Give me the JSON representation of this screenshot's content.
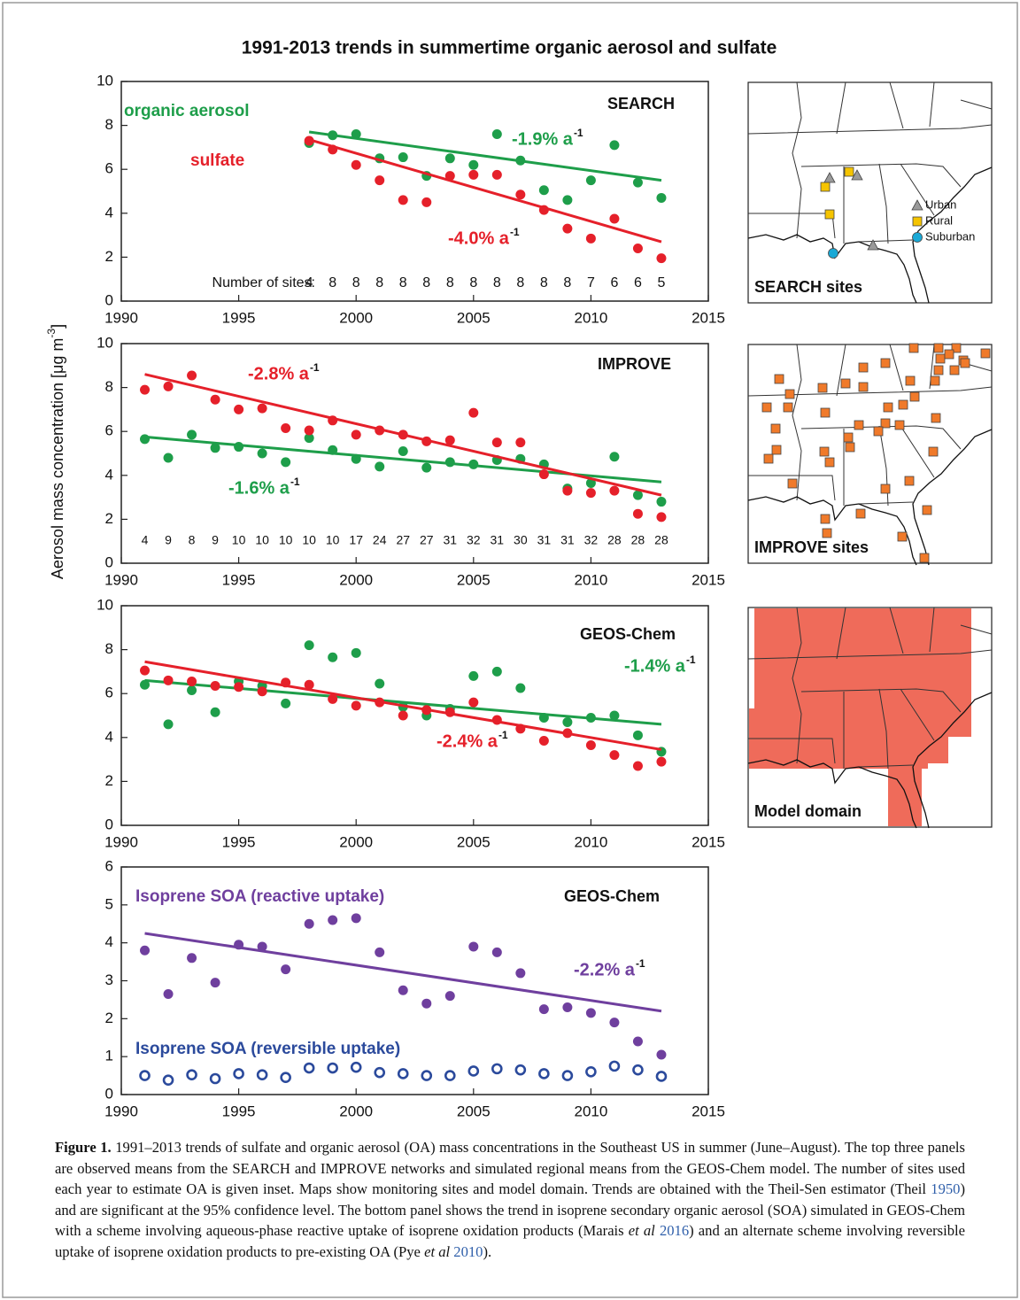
{
  "title": "1991-2013 trends in summertime organic aerosol and sulfate",
  "y_label": {
    "text": "Aerosol mass concentration [μg m",
    "sup": "-3",
    "end": "]"
  },
  "chart_data": [
    {
      "type": "scatter",
      "label": "SEARCH",
      "xlim": [
        1990,
        2015
      ],
      "xticks": [
        1990,
        1995,
        2000,
        2005,
        2010,
        2015
      ],
      "ylim": [
        0,
        10
      ],
      "yticks": [
        0,
        2,
        4,
        6,
        8,
        10
      ],
      "x": [
        1998,
        1999,
        2000,
        2001,
        2002,
        2003,
        2004,
        2005,
        2006,
        2007,
        2008,
        2009,
        2010,
        2011,
        2012,
        2013
      ],
      "series": [
        {
          "name": "organic aerosol",
          "color": "#1e9e4a",
          "marker": "filled",
          "values": [
            7.2,
            7.55,
            7.6,
            6.5,
            6.55,
            5.7,
            6.5,
            6.2,
            7.6,
            6.4,
            5.05,
            4.6,
            5.5,
            7.1,
            5.4,
            4.7
          ],
          "trend_x": [
            1998,
            2013
          ],
          "trend_values": [
            7.7,
            5.5
          ],
          "trend_label": "-1.9% a",
          "trend_label_sup": "-1"
        },
        {
          "name": "sulfate",
          "color": "#e5202a",
          "marker": "filled",
          "values": [
            7.3,
            6.9,
            6.2,
            5.5,
            4.6,
            4.5,
            5.7,
            5.75,
            5.75,
            4.85,
            4.15,
            3.3,
            2.85,
            3.75,
            2.4,
            1.95
          ],
          "trend_x": [
            1998,
            2013
          ],
          "trend_values": [
            7.35,
            2.7
          ],
          "trend_label": "-4.0% a",
          "trend_label_sup": "-1"
        }
      ],
      "sites_label": "Number of sites:",
      "sites": [
        4,
        8,
        8,
        8,
        8,
        8,
        8,
        8,
        8,
        8,
        8,
        8,
        7,
        6,
        6,
        5
      ]
    },
    {
      "type": "scatter",
      "label": "IMPROVE",
      "xlim": [
        1990,
        2015
      ],
      "xticks": [
        1990,
        1995,
        2000,
        2005,
        2010,
        2015
      ],
      "ylim": [
        0,
        10
      ],
      "yticks": [
        0,
        2,
        4,
        6,
        8,
        10
      ],
      "x": [
        1991,
        1992,
        1993,
        1994,
        1995,
        1996,
        1997,
        1998,
        1999,
        2000,
        2001,
        2002,
        2003,
        2004,
        2005,
        2006,
        2007,
        2008,
        2009,
        2010,
        2011,
        2012,
        2013
      ],
      "series": [
        {
          "color": "#1e9e4a",
          "marker": "filled",
          "values": [
            5.65,
            4.8,
            5.85,
            5.25,
            5.3,
            5.0,
            4.6,
            5.7,
            5.15,
            4.75,
            4.4,
            5.1,
            4.35,
            4.6,
            4.5,
            4.7,
            4.75,
            4.5,
            3.4,
            3.65,
            4.85,
            3.1,
            2.8
          ],
          "trend_x": [
            1991,
            2013
          ],
          "trend_values": [
            5.75,
            3.7
          ],
          "trend_label": "-1.6% a",
          "trend_label_sup": "-1"
        },
        {
          "color": "#e5202a",
          "marker": "filled",
          "values": [
            7.9,
            8.05,
            8.55,
            7.45,
            7.0,
            7.05,
            6.15,
            6.05,
            6.5,
            5.85,
            6.05,
            5.85,
            5.55,
            5.6,
            6.85,
            5.5,
            5.5,
            4.05,
            3.3,
            3.2,
            3.3,
            2.25,
            2.1
          ],
          "trend_x": [
            1991,
            2013
          ],
          "trend_values": [
            8.6,
            3.1
          ],
          "trend_label": "-2.8% a",
          "trend_label_sup": "-1"
        }
      ],
      "sites": [
        4,
        9,
        8,
        9,
        10,
        10,
        10,
        10,
        10,
        17,
        24,
        27,
        27,
        31,
        32,
        31,
        30,
        31,
        31,
        32,
        28,
        28,
        28
      ]
    },
    {
      "type": "scatter",
      "label": "GEOS-Chem",
      "xlim": [
        1990,
        2015
      ],
      "xticks": [
        1990,
        1995,
        2000,
        2005,
        2010,
        2015
      ],
      "ylim": [
        0,
        10
      ],
      "yticks": [
        0,
        2,
        4,
        6,
        8,
        10
      ],
      "x": [
        1991,
        1992,
        1993,
        1994,
        1995,
        1996,
        1997,
        1998,
        1999,
        2000,
        2001,
        2002,
        2003,
        2004,
        2005,
        2006,
        2007,
        2008,
        2009,
        2010,
        2011,
        2012,
        2013
      ],
      "series": [
        {
          "color": "#1e9e4a",
          "marker": "filled",
          "values": [
            6.4,
            4.6,
            6.15,
            5.15,
            6.55,
            6.35,
            5.55,
            8.2,
            7.65,
            7.85,
            6.45,
            5.4,
            5.0,
            5.3,
            6.8,
            7.0,
            6.25,
            4.9,
            4.7,
            4.9,
            5.0,
            4.1,
            3.35
          ],
          "trend_x": [
            1991,
            2013
          ],
          "trend_values": [
            6.6,
            4.6
          ],
          "trend_label": "-1.4% a",
          "trend_label_sup": "-1"
        },
        {
          "color": "#e5202a",
          "marker": "filled",
          "values": [
            7.05,
            6.6,
            6.55,
            6.35,
            6.3,
            6.1,
            6.5,
            6.4,
            5.75,
            5.45,
            5.6,
            5.0,
            5.25,
            5.15,
            5.6,
            4.8,
            4.4,
            3.85,
            4.2,
            3.65,
            3.2,
            2.7,
            2.9
          ],
          "trend_x": [
            1991,
            2013
          ],
          "trend_values": [
            7.45,
            3.45
          ],
          "trend_label": "-2.4% a",
          "trend_label_sup": "-1"
        }
      ]
    },
    {
      "type": "scatter",
      "label": "GEOS-Chem",
      "xlim": [
        1990,
        2015
      ],
      "xticks": [
        1990,
        1995,
        2000,
        2005,
        2010,
        2015
      ],
      "ylim": [
        0,
        6
      ],
      "yticks": [
        0,
        1,
        2,
        3,
        4,
        5,
        6
      ],
      "x": [
        1991,
        1992,
        1993,
        1994,
        1995,
        1996,
        1997,
        1998,
        1999,
        2000,
        2001,
        2002,
        2003,
        2004,
        2005,
        2006,
        2007,
        2008,
        2009,
        2010,
        2011,
        2012,
        2013
      ],
      "series": [
        {
          "name": "Isoprene SOA (reactive uptake)",
          "color": "#6f3f9e",
          "marker": "filled",
          "values": [
            3.8,
            2.65,
            3.6,
            2.95,
            3.95,
            3.9,
            3.3,
            4.5,
            4.6,
            4.65,
            3.75,
            2.75,
            2.4,
            2.6,
            3.9,
            3.75,
            3.2,
            2.25,
            2.3,
            2.15,
            1.9,
            1.4,
            1.05
          ],
          "trend_x": [
            1991,
            2013
          ],
          "trend_values": [
            4.25,
            2.2
          ],
          "trend_label": "-2.2% a",
          "trend_label_sup": "-1"
        },
        {
          "name": "Isoprene SOA (reversible uptake)",
          "color": "#2b4a9c",
          "marker": "open",
          "values": [
            0.5,
            0.38,
            0.52,
            0.42,
            0.55,
            0.52,
            0.45,
            0.7,
            0.7,
            0.72,
            0.58,
            0.55,
            0.5,
            0.5,
            0.62,
            0.68,
            0.65,
            0.55,
            0.5,
            0.6,
            0.75,
            0.65,
            0.48
          ]
        }
      ]
    }
  ],
  "maps": [
    {
      "title": "SEARCH sites",
      "legend": [
        "Urban",
        "Rural",
        "Suburban"
      ]
    },
    {
      "title": "IMPROVE sites"
    },
    {
      "title": "Model domain"
    }
  ],
  "caption": {
    "label": "Figure 1.",
    "parts": [
      {
        "text": " 1991–2013 trends of sulfate and organic aerosol (OA) mass concentrations in the Southeast US in summer (June–August). The top three panels are observed means from the SEARCH and IMPROVE networks and simulated regional means from the GEOS-Chem model. The number of sites used each year to estimate OA is given inset. Maps show monitoring sites and model domain. Trends are obtained with the Theil-Sen estimator (Theil ",
        "style": "plain"
      },
      {
        "text": "1950",
        "style": "link"
      },
      {
        "text": ") and are significant at the 95% confidence level. The bottom panel shows the trend in isoprene secondary organic aerosol (SOA) simulated in GEOS-Chem with a scheme involving aqueous-phase reactive uptake of isoprene oxidation products (Marais ",
        "style": "plain"
      },
      {
        "text": "et al",
        "style": "italic"
      },
      {
        "text": " ",
        "style": "plain"
      },
      {
        "text": "2016",
        "style": "link"
      },
      {
        "text": ") and an alternate scheme involving reversible uptake of isoprene oxidation products to pre-existing OA (Pye ",
        "style": "plain"
      },
      {
        "text": "et al",
        "style": "italic"
      },
      {
        "text": " ",
        "style": "plain"
      },
      {
        "text": "2010",
        "style": "link"
      },
      {
        "text": ").",
        "style": "plain"
      }
    ]
  }
}
